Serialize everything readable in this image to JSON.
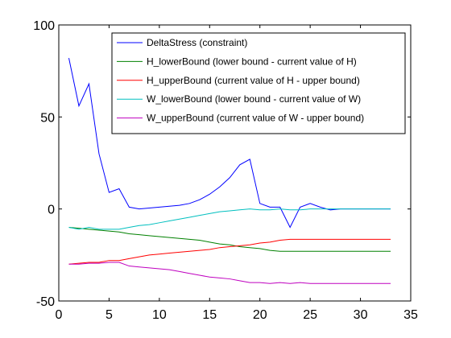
{
  "chart_data": {
    "type": "line",
    "title": "",
    "xlabel": "",
    "ylabel": "",
    "xlim": [
      0,
      35
    ],
    "ylim": [
      -50,
      100
    ],
    "xticks": [
      0,
      5,
      10,
      15,
      20,
      25,
      30,
      35
    ],
    "yticks": [
      -50,
      0,
      50,
      100
    ],
    "xtick_labels": [
      "0",
      "5",
      "10",
      "15",
      "20",
      "25",
      "30",
      "35"
    ],
    "ytick_labels": [
      "-50",
      "0",
      "50",
      "100"
    ],
    "grid": false,
    "legend": "top-right",
    "x": [
      1,
      2,
      3,
      4,
      5,
      6,
      7,
      8,
      9,
      10,
      11,
      12,
      13,
      14,
      15,
      16,
      17,
      18,
      19,
      20,
      21,
      22,
      23,
      24,
      25,
      26,
      27,
      28,
      29,
      30,
      31,
      32,
      33
    ],
    "series": [
      {
        "name": "DeltaStress (constraint)",
        "color": "#0000ff",
        "values": [
          82,
          56,
          68,
          30,
          9,
          11,
          1,
          0,
          0.5,
          1,
          1.5,
          2,
          3,
          5,
          8,
          12,
          17,
          24,
          27,
          3,
          1,
          1,
          -10,
          1,
          3,
          1,
          -0.5,
          0,
          0,
          0,
          0,
          0,
          0
        ]
      },
      {
        "name": "H_lowerBound (lower bound - current value of H)",
        "color": "#008000",
        "values": [
          -10,
          -10.5,
          -11,
          -11.5,
          -12,
          -12.5,
          -13.5,
          -14,
          -14.5,
          -15,
          -15.5,
          -16,
          -16.5,
          -17,
          -18,
          -19,
          -19.5,
          -20.5,
          -21,
          -21.5,
          -22.5,
          -23,
          -23,
          -23,
          -23,
          -23,
          -23,
          -23,
          -23,
          -23,
          -23,
          -23,
          -23
        ]
      },
      {
        "name": "H_upperBound (current value of H - upper bound)",
        "color": "#ff0000",
        "values": [
          -30,
          -29.5,
          -29,
          -29,
          -28,
          -28,
          -27,
          -26,
          -25,
          -24.5,
          -24,
          -23.5,
          -23,
          -22.5,
          -22,
          -21,
          -20.5,
          -20,
          -19.5,
          -18.5,
          -18,
          -17,
          -16.5,
          -16.5,
          -16.5,
          -16.5,
          -16.5,
          -16.5,
          -16.5,
          -16.5,
          -16.5,
          -16.5,
          -16.5
        ]
      },
      {
        "name": "W_lowerBound (lower bound - current value of W)",
        "color": "#00bfbf",
        "values": [
          -10,
          -11,
          -10,
          -11,
          -11,
          -11,
          -10,
          -9,
          -8.5,
          -7.5,
          -6.5,
          -5.5,
          -4.5,
          -3.5,
          -2.5,
          -1.5,
          -1,
          -0.5,
          0,
          -0.5,
          -0.5,
          0,
          -0.5,
          -0.5,
          0,
          0,
          0,
          0,
          0,
          0,
          0,
          0,
          0
        ]
      },
      {
        "name": "W_upperBound (current value of W - upper bound)",
        "color": "#bf00bf",
        "values": [
          -30,
          -30,
          -29.5,
          -29.5,
          -29,
          -29,
          -31,
          -31.5,
          -32,
          -32.5,
          -33,
          -34,
          -35,
          -36,
          -37,
          -37.5,
          -38,
          -39,
          -40,
          -40,
          -40.5,
          -40,
          -40.5,
          -40,
          -40.5,
          -40.5,
          -40.5,
          -40.5,
          -40.5,
          -40.5,
          -40.5,
          -40.5,
          -40.5
        ]
      }
    ]
  }
}
